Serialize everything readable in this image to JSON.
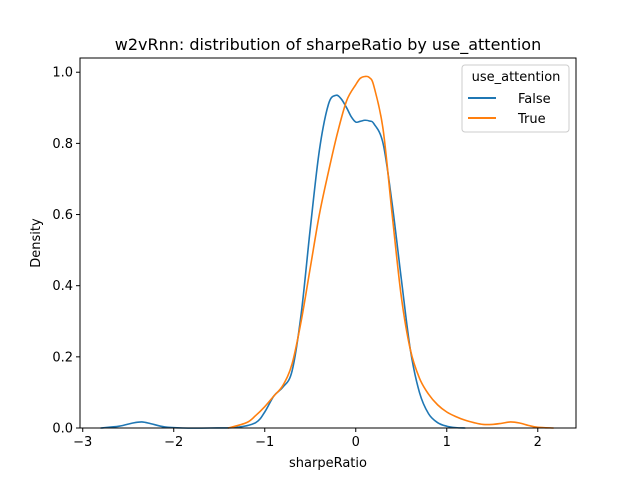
{
  "chart_data": {
    "type": "line",
    "title": "w2vRnn: distribution of sharpeRatio by use_attention",
    "xlabel": "sharpeRatio",
    "ylabel": "Density",
    "xlim": [
      -3.03,
      2.42
    ],
    "ylim": [
      0,
      1.04
    ],
    "xticks": [
      -3,
      -2,
      -1,
      0,
      1,
      2
    ],
    "xtick_labels": [
      "−3",
      "−2",
      "−1",
      "0",
      "1",
      "2"
    ],
    "yticks": [
      0.0,
      0.2,
      0.4,
      0.6,
      0.8,
      1.0
    ],
    "ytick_labels": [
      "0.0",
      "0.2",
      "0.4",
      "0.6",
      "0.8",
      "1.0"
    ],
    "grid": false,
    "legend": {
      "title": "use_attention",
      "placement": "top-right"
    },
    "series": [
      {
        "name": "False",
        "color": "#1f77b4",
        "x": [
          -2.8,
          -2.6,
          -2.45,
          -2.35,
          -2.25,
          -2.1,
          -1.9,
          -1.6,
          -1.3,
          -1.1,
          -1.0,
          -0.9,
          -0.8,
          -0.7,
          -0.6,
          -0.5,
          -0.4,
          -0.3,
          -0.22,
          -0.16,
          -0.1,
          -0.05,
          0.0,
          0.05,
          0.1,
          0.15,
          0.2,
          0.3,
          0.4,
          0.5,
          0.6,
          0.7,
          0.8,
          0.9,
          1.0,
          1.1,
          1.2
        ],
        "y": [
          0.0,
          0.005,
          0.014,
          0.017,
          0.012,
          0.003,
          0.0,
          0.0,
          0.002,
          0.015,
          0.045,
          0.09,
          0.115,
          0.16,
          0.32,
          0.56,
          0.78,
          0.91,
          0.935,
          0.925,
          0.9,
          0.875,
          0.86,
          0.862,
          0.865,
          0.863,
          0.855,
          0.8,
          0.63,
          0.42,
          0.22,
          0.1,
          0.04,
          0.015,
          0.005,
          0.001,
          0.0
        ]
      },
      {
        "name": "True",
        "color": "#ff7f0e",
        "x": [
          -1.4,
          -1.2,
          -1.1,
          -1.0,
          -0.9,
          -0.8,
          -0.7,
          -0.6,
          -0.5,
          -0.4,
          -0.3,
          -0.2,
          -0.1,
          0.0,
          0.05,
          0.1,
          0.15,
          0.2,
          0.3,
          0.4,
          0.5,
          0.6,
          0.7,
          0.8,
          0.9,
          1.0,
          1.1,
          1.2,
          1.3,
          1.4,
          1.5,
          1.6,
          1.7,
          1.8,
          1.9,
          2.0,
          2.17
        ],
        "y": [
          0.0,
          0.015,
          0.035,
          0.06,
          0.09,
          0.12,
          0.18,
          0.3,
          0.45,
          0.6,
          0.72,
          0.83,
          0.92,
          0.965,
          0.983,
          0.988,
          0.985,
          0.96,
          0.84,
          0.6,
          0.37,
          0.22,
          0.14,
          0.095,
          0.065,
          0.045,
          0.032,
          0.022,
          0.015,
          0.01,
          0.01,
          0.013,
          0.017,
          0.014,
          0.007,
          0.002,
          0.0
        ]
      }
    ]
  }
}
